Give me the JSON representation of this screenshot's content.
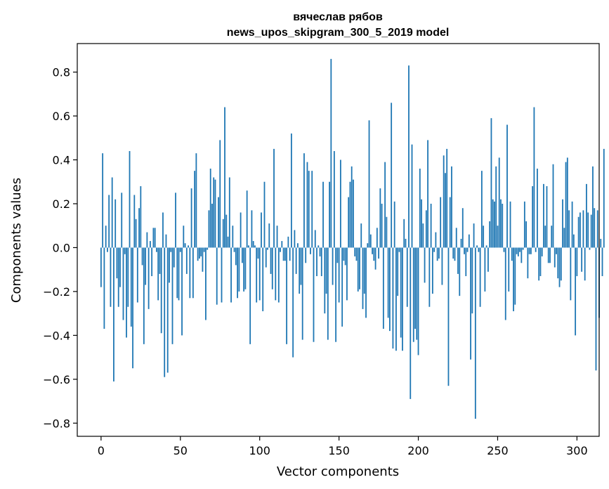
{
  "chart_data": {
    "type": "bar",
    "title": "вячеслав рябов",
    "subtitle": "news_upos_skipgram_300_5_2019 model",
    "xlabel": "Vector components",
    "ylabel": "Components values",
    "xlim": [
      -15,
      314
    ],
    "ylim": [
      -0.86,
      0.93
    ],
    "xticks": [
      0,
      50,
      100,
      150,
      200,
      250,
      300
    ],
    "yticks": [
      -0.8,
      -0.6,
      -0.4,
      -0.2,
      0.0,
      0.2,
      0.4,
      0.6,
      0.8
    ],
    "xtick_labels": [
      "0",
      "50",
      "100",
      "150",
      "200",
      "250",
      "300"
    ],
    "ytick_labels": [
      "−0.8",
      "−0.6",
      "−0.4",
      "−0.2",
      "0.0",
      "0.2",
      "0.4",
      "0.6",
      "0.8"
    ],
    "bar_color": "#1f77b4",
    "values": [
      -0.18,
      0.43,
      -0.37,
      0.1,
      -0.02,
      0.24,
      -0.27,
      0.32,
      -0.61,
      0.22,
      -0.14,
      -0.27,
      -0.18,
      0.25,
      -0.33,
      -0.03,
      -0.41,
      -0.27,
      0.44,
      -0.36,
      -0.55,
      0.24,
      0.13,
      -0.25,
      0.18,
      0.28,
      -0.08,
      -0.44,
      -0.17,
      0.07,
      -0.28,
      0.03,
      -0.13,
      0.09,
      0.09,
      -0.02,
      -0.24,
      -0.12,
      -0.39,
      0.16,
      -0.59,
      0.06,
      -0.57,
      -0.16,
      -0.02,
      -0.44,
      -0.09,
      0.25,
      -0.23,
      -0.24,
      -0.02,
      -0.4,
      0.1,
      0.02,
      -0.12,
      0.01,
      -0.23,
      0.27,
      -0.23,
      0.35,
      0.43,
      -0.06,
      -0.05,
      -0.04,
      -0.11,
      -0.02,
      -0.33,
      -0.01,
      0.17,
      0.36,
      0.2,
      0.32,
      0.31,
      -0.26,
      0.23,
      0.49,
      -0.25,
      0.13,
      0.64,
      0.15,
      0.05,
      0.32,
      -0.25,
      0.1,
      -0.02,
      -0.08,
      -0.23,
      -0.2,
      0.16,
      -0.07,
      -0.2,
      -0.19,
      0.26,
      0.01,
      -0.44,
      0.17,
      0.03,
      0.01,
      -0.25,
      -0.05,
      -0.24,
      0.16,
      -0.29,
      0.3,
      -0.09,
      -0.01,
      0.11,
      -0.12,
      -0.19,
      0.45,
      -0.24,
      0.1,
      -0.25,
      -0.02,
      0.03,
      -0.06,
      -0.06,
      -0.44,
      0.05,
      -0.06,
      0.52,
      -0.5,
      0.08,
      -0.12,
      0.02,
      -0.21,
      -0.17,
      -0.42,
      0.43,
      -0.07,
      0.39,
      0.35,
      -0.03,
      0.35,
      -0.43,
      0.08,
      -0.13,
      0.01,
      -0.04,
      -0.13,
      0.3,
      -0.3,
      -0.21,
      -0.42,
      0.3,
      0.86,
      -0.17,
      0.44,
      -0.43,
      -0.07,
      -0.25,
      0.4,
      -0.36,
      -0.06,
      -0.08,
      -0.24,
      0.23,
      0.3,
      0.37,
      0.31,
      -0.04,
      -0.06,
      -0.2,
      -0.19,
      0.11,
      -0.28,
      -0.21,
      -0.32,
      0.02,
      0.58,
      0.06,
      -0.03,
      -0.06,
      -0.1,
      0.09,
      -0.05,
      0.27,
      0.2,
      -0.37,
      0.39,
      0.14,
      -0.32,
      -0.38,
      0.66,
      -0.46,
      0.21,
      -0.47,
      -0.22,
      -0.02,
      -0.41,
      -0.47,
      0.13,
      0.04,
      -0.27,
      0.83,
      -0.69,
      0.47,
      -0.43,
      -0.37,
      -0.42,
      -0.49,
      0.36,
      0.22,
      0.11,
      -0.16,
      0.17,
      0.49,
      -0.27,
      0.2,
      -0.21,
      -0.02,
      0.07,
      -0.06,
      -0.05,
      0.23,
      -0.17,
      0.42,
      0.34,
      0.45,
      -0.63,
      0.23,
      0.37,
      -0.05,
      -0.06,
      0.09,
      -0.12,
      -0.22,
      0.04,
      0.18,
      -0.03,
      -0.13,
      -0.02,
      0.06,
      -0.51,
      -0.3,
      0.11,
      -0.78,
      0.01,
      -0.02,
      -0.27,
      0.35,
      0.1,
      -0.2,
      0.01,
      -0.11,
      0.12,
      0.59,
      0.22,
      0.21,
      0.37,
      0.1,
      0.41,
      0.22,
      0.2,
      -0.02,
      -0.33,
      0.56,
      -0.2,
      0.21,
      -0.06,
      -0.29,
      -0.26,
      -0.03,
      -0.04,
      -0.02,
      -0.07,
      -0.01,
      0.21,
      0.12,
      -0.14,
      -0.03,
      -0.03,
      0.28,
      0.64,
      -0.02,
      0.36,
      -0.15,
      -0.13,
      -0.04,
      0.29,
      0.1,
      0.28,
      -0.07,
      -0.07,
      0.1,
      0.38,
      -0.09,
      -0.03,
      -0.14,
      -0.18,
      -0.15,
      0.22,
      0.09,
      0.39,
      0.41,
      0.17,
      -0.24,
      0.21,
      0.06,
      -0.4,
      -0.13,
      0.14,
      0.16,
      -0.11,
      0.17,
      -0.15,
      0.29,
      0.16,
      -0.01,
      0.15,
      0.37,
      0.18,
      -0.56,
      0.17,
      -0.32,
      0.04,
      -0.13,
      0.45
    ]
  }
}
